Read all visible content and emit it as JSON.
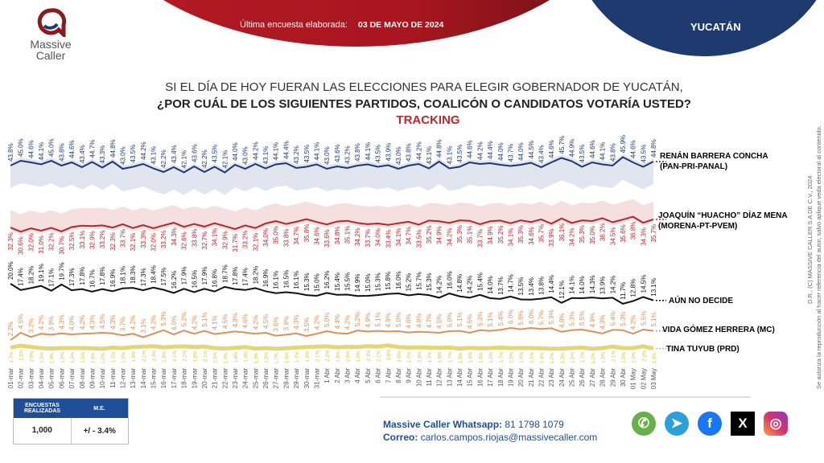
{
  "header": {
    "last_survey_label": "Última encuesta elaborada:",
    "last_survey_date": "03 DE MAYO DE 2024",
    "state": "YUCATÁN",
    "logo_text_1": "Massive",
    "logo_text_2": "Caller"
  },
  "question": {
    "line1": "SI EL DÍA DE HOY FUERAN LAS ELECCIONES PARA ELEGIR GOBERNADOR DE YUCATÁN,",
    "line2": "¿POR CUÁL DE LOS SIGUIENTES PARTIDOS, COALICÓN  O CANDIDATOS VOTARÍA USTED?",
    "line3": "TRACKING"
  },
  "chart_data": {
    "type": "line",
    "x": [
      "01-mar",
      "02-mar",
      "03-mar",
      "04-mar",
      "05-mar",
      "06-mar",
      "07-mar",
      "08-mar",
      "09-mar",
      "10-mar",
      "11-mar",
      "12-mar",
      "13-mar",
      "14-mar",
      "15-mar",
      "16-mar",
      "17-mar",
      "18-mar",
      "19-mar",
      "20-mar",
      "21-mar",
      "22-mar",
      "23-mar",
      "24-mar",
      "25-mar",
      "26-mar",
      "27-mar",
      "28-mar",
      "29-mar",
      "30-mar",
      "31-mar",
      "1 Abr",
      "2 Abr",
      "3 Abr",
      "4 Abr",
      "5 Abr",
      "6 Abr",
      "7 Abr",
      "8 Abr",
      "9 Abr",
      "10 Abr",
      "11 Abr",
      "12 Abr",
      "13 Abr",
      "14 Abr",
      "15 Abr",
      "16 Abr",
      "17 Abr",
      "18 Abr",
      "19 Abr",
      "20 Abr",
      "21 Abr",
      "22 Abr",
      "23 Abr",
      "24 Abr",
      "25 Abr",
      "26 Abr",
      "27 Abr",
      "28 Abr",
      "29 Abr",
      "30 Abr",
      "01 May",
      "02 May",
      "03 May"
    ],
    "series": [
      {
        "name": "RENÁN BARRERA CONCHA",
        "name2": "(PAN-PRI-PANAL)",
        "color": "#1e3a6e",
        "band_color": "#dde2ee",
        "label_pos": "above",
        "values": [
          43.8,
          45.0,
          44.6,
          44.1,
          45.0,
          43.8,
          44.6,
          43.4,
          44.7,
          43.3,
          44.8,
          43.0,
          43.5,
          44.2,
          43.1,
          42.2,
          43.4,
          42.1,
          43.6,
          42.2,
          43.5,
          42.1,
          44.0,
          43.0,
          44.2,
          43.1,
          44.1,
          44.4,
          43.2,
          43.5,
          44.1,
          43.0,
          43.6,
          43.2,
          43.8,
          44.1,
          43.5,
          43.9,
          43.0,
          43.8,
          44.2,
          43.1,
          44.8,
          43.1,
          43.5,
          44.6,
          44.2,
          44.4,
          44.0,
          43.7,
          44.0,
          44.5,
          43.4,
          44.6,
          45.7,
          44.9,
          43.5,
          44.6,
          44.1,
          43.8,
          45.9,
          44.6,
          43.5,
          44.8
        ]
      },
      {
        "name": "JOAQUÍN “HUACHO” DÍAZ MENA",
        "name2": "(MORENA-PT-PVEM)",
        "color": "#b3272d",
        "band_color": "#f5dcdc",
        "label_pos": "below",
        "values": [
          32.3,
          30.6,
          32.0,
          31.0,
          32.2,
          30.7,
          32.5,
          33.1,
          32.9,
          33.2,
          32.3,
          33.7,
          32.1,
          33.3,
          32.0,
          33.2,
          34.3,
          32.6,
          33.8,
          32.7,
          34.1,
          32.9,
          31.7,
          33.2,
          32.1,
          34.0,
          35.0,
          33.8,
          34.7,
          35.8,
          34.6,
          33.6,
          34.8,
          35.1,
          34.2,
          33.7,
          34.0,
          33.4,
          34.1,
          34.7,
          33.5,
          35.2,
          34.9,
          34.2,
          35.3,
          35.1,
          33.7,
          34.9,
          35.2,
          34.1,
          35.3,
          34.6,
          35.7,
          33.9,
          36.1,
          34.2,
          35.3,
          35.0,
          36.2,
          34.5,
          35.6,
          36.8,
          34.3,
          35.7
        ]
      },
      {
        "name": "AÚN NO DECIDE",
        "name2": "",
        "color": "#111111",
        "label_pos": "above",
        "values": [
          20.0,
          17.4,
          18.2,
          19.1,
          17.1,
          19.7,
          17.3,
          17.8,
          16.7,
          17.8,
          16.9,
          18.1,
          18.3,
          17.3,
          18.4,
          17.5,
          16.2,
          17.9,
          16.5,
          17.9,
          16.8,
          18.7,
          17.8,
          17.4,
          18.2,
          16.9,
          16.1,
          16.5,
          16.1,
          15.3,
          15.0,
          16.2,
          15.4,
          15.5,
          14.9,
          15.0,
          15.3,
          15.8,
          16.0,
          15.2,
          15.7,
          15.3,
          14.2,
          16.0,
          14.8,
          14.2,
          15.4,
          14.0,
          13.7,
          14.7,
          13.5,
          13.4,
          13.8,
          14.4,
          12.1,
          14.1,
          14.0,
          14.3,
          13.9,
          14.2,
          11.7,
          12.8,
          14.5,
          13.1
        ]
      },
      {
        "name": "VIDA GÓMEZ HERRERA (MC)",
        "name2": "",
        "color": "#d9925a",
        "label_pos": "above",
        "values": [
          2.2,
          4.5,
          3.2,
          4.2,
          3.9,
          4.3,
          4.0,
          4.2,
          4.3,
          4.5,
          4.3,
          3.7,
          4.2,
          3.1,
          4.2,
          5.3,
          4.0,
          5.2,
          4.2,
          5.1,
          4.1,
          4.5,
          4.9,
          4.6,
          4.2,
          4.5,
          3.6,
          3.9,
          4.3,
          3.5,
          4.2,
          5.0,
          4.4,
          4.2,
          5.2,
          4.9,
          5.1,
          4.9,
          5.0,
          4.6,
          4.8,
          4.7,
          4.5,
          5.0,
          5.1,
          4.5,
          5.3,
          5.1,
          5.4,
          6.0,
          5.6,
          6.0,
          5.7,
          5.9,
          4.8,
          5.3,
          5.5,
          4.9,
          4.3,
          5.4,
          5.3,
          4.2,
          5.5,
          5.1
        ]
      },
      {
        "name": "TINA TUYUB (PRD)",
        "name2": "",
        "color": "#d8c43a",
        "label_pos": "below",
        "values": [
          1.7,
          2.5,
          2.0,
          1.5,
          1.3,
          1.5,
          1.5,
          1.5,
          1.4,
          1.2,
          1.7,
          1.5,
          1.9,
          2.1,
          2.3,
          1.8,
          2.1,
          2.2,
          1.9,
          2.1,
          1.5,
          1.3,
          1.6,
          1.9,
          1.3,
          1.5,
          1.2,
          1.4,
          1.7,
          1.9,
          2.1,
          2.2,
          1.8,
          2.0,
          1.9,
          2.3,
          2.1,
          2.6,
          1.9,
          1.7,
          1.8,
          1.7,
          1.6,
          1.7,
          1.3,
          1.6,
          1.4,
          1.5,
          1.7,
          1.5,
          1.5,
          1.5,
          1.4,
          1.2,
          1.3,
          1.5,
          1.7,
          1.2,
          1.5,
          2.1,
          1.5,
          1.5,
          2.2,
          1.3
        ]
      }
    ],
    "value_suffix": "%",
    "grid": false,
    "legend": "right"
  },
  "side_note": {
    "line1": "D.R., (C) MASSIVE CALLER S.A DE C.V., 2024",
    "line2": "Se autoriza la reproducción al hacer referencia del autor, salvo aplique veda electoral al contenido."
  },
  "stats": {
    "surveys_header": "ENCUESTAS REALIZADAS",
    "me_header": "M.E.",
    "surveys_value": "1,000",
    "me_value": "+/ - 3.4%"
  },
  "contact": {
    "whatsapp_label": "Massive Caller Whatsapp:",
    "whatsapp_number": "81 1798 1079",
    "email_label": "Correo:",
    "email": "carlos.campos.riojas@massivecaller.com"
  },
  "social": [
    {
      "icon": "whatsapp-icon",
      "color": "#67b04a"
    },
    {
      "icon": "telegram-icon",
      "color": "#2a9fd8"
    },
    {
      "icon": "facebook-icon",
      "color": "#1877f2"
    },
    {
      "icon": "x-icon",
      "color": "#000000"
    },
    {
      "icon": "instagram-icon",
      "color": "#d6336c"
    }
  ]
}
